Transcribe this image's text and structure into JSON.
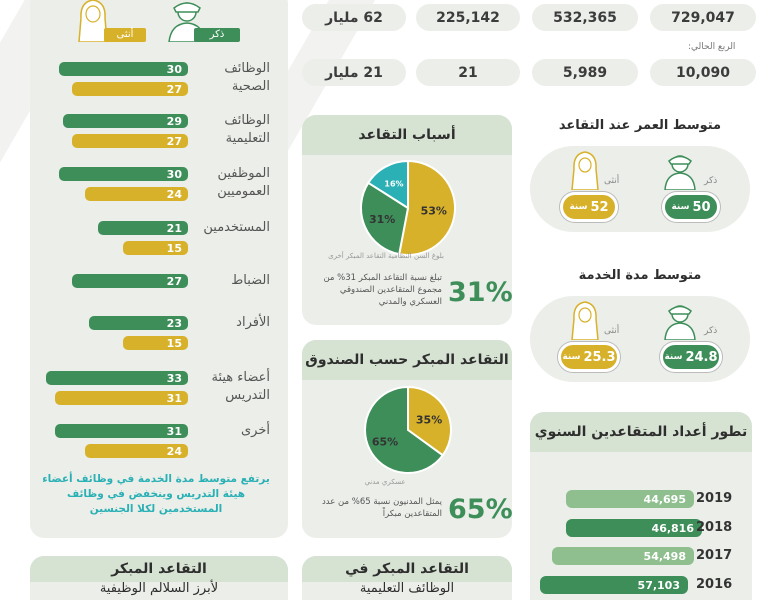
{
  "colors": {
    "male": "#3e8e5a",
    "female": "#d8b12a",
    "card": "#ebeee9",
    "title_bg": "#d6e3d3",
    "teal": "#2ab0b5"
  },
  "stats": {
    "row1": [
      "729,047",
      "532,365",
      "225,142",
      "62 مليار"
    ],
    "current_quarter_label": "الربع الحالي:",
    "row2": [
      "10,090",
      "5,989",
      "21",
      "21 مليار"
    ]
  },
  "genders": {
    "male": "ذكر",
    "female": "أنثى"
  },
  "jobs_chart": {
    "chart_data": {
      "type": "bar",
      "categories": [
        "الوظائف الصحية",
        "الوظائف التعليمية",
        "الموظفين العموميين",
        "المستخدمين",
        "الضباط",
        "الأفراد",
        "أعضاء هيئة التدريس",
        "أخرى"
      ],
      "series": [
        {
          "name": "ذكر",
          "values": [
            30,
            29,
            30,
            21,
            27,
            23,
            33,
            31
          ]
        },
        {
          "name": "أنثى",
          "values": [
            27,
            27,
            24,
            15,
            null,
            15,
            31,
            24
          ]
        }
      ]
    },
    "labels": [
      "الوظائف\nالصحية",
      "الوظائف\nالتعليمية",
      "الموظفين\nالعموميين",
      "المستخدمين",
      "الضباط",
      "الأفراد",
      "أعضاء هيئة\nالتدريس",
      "أخرى"
    ],
    "note": "يرتفع متوسط مدة الخدمة في وظائف أعضاء هيئة التدريس  وينخفض في وظائف المستخدمين لكلا الجنسين"
  },
  "age_card": {
    "title": "متوسط العمر عند التقاعد",
    "male_value": "50",
    "female_value": "52",
    "unit": "سنة"
  },
  "service_card": {
    "title": "متوسط مدة الخدمة",
    "male_value": "24.8",
    "female_value": "25.3",
    "unit": "سنة"
  },
  "reasons_card": {
    "title": "أسباب التقاعد",
    "chart_data": {
      "type": "pie",
      "values": [
        53,
        31,
        16
      ],
      "labels": [
        "53%",
        "31%",
        "16%"
      ]
    },
    "legend": "بلوغ السن النظامية   التقاعد المبكر   أخرى",
    "big_pct": "31%",
    "note": "تبلغ نسبة التقاعد المبكر 31% من مجموع المتقاعدين الصندوقي العسكري والمدني"
  },
  "fund_card": {
    "title": "التقاعد المبكر حسب الصندوق",
    "chart_data": {
      "type": "pie",
      "values": [
        35,
        65
      ],
      "labels": [
        "35%",
        "65%"
      ]
    },
    "legend": "عسكري   مدني",
    "big_pct": "65%",
    "note": "يمثل المدنيون نسبة 65% من عدد المتقاعدين مبكراً"
  },
  "trend_card": {
    "title": "تطور أعداد المتقاعدين السنوي",
    "chart_data": {
      "type": "bar",
      "categories": [
        "2019",
        "2018",
        "2017",
        "2016"
      ],
      "values": [
        44695,
        46816,
        54498,
        57103
      ]
    },
    "value_labels": [
      "44,695",
      "46,816",
      "54,498",
      "57,103"
    ]
  },
  "bottom": {
    "left_title": "التقاعد المبكر",
    "left_sub": "لأبرز السلالم الوظيفية",
    "mid_title": "التقاعد المبكر في",
    "mid_sub": "الوظائف التعليمية"
  }
}
